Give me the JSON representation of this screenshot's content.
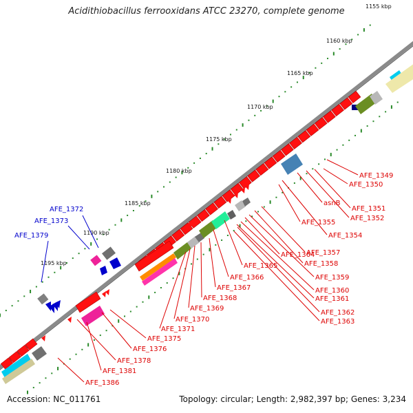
{
  "title": "Acidithiobacillus ferrooxidans ATCC 23270, complete genome",
  "footer": {
    "accession": "Accession: NC_011761",
    "summary": "Topology: circular; Length: 2,982,397 bp; Genes: 3,234"
  },
  "colors": {
    "backbone": "#8a8a8a",
    "forward_label": "#0000cc",
    "reverse_label": "#dd0000",
    "tick_major": "#2a8a2a",
    "tick_minor": "#2a8a2a"
  },
  "kbp_labels": [
    "1155 kbp",
    "1160 kbp",
    "1165 kbp",
    "1170 kbp",
    "1175 kbp",
    "1180 kbp",
    "1185 kbp",
    "1190 kbp",
    "1195 kbp"
  ],
  "labels_forward": [
    "AFE_1372",
    "AFE_1373",
    "AFE_1379"
  ],
  "labels_reverse": [
    "AFE_1349",
    "AFE_1350",
    "AFE_1351",
    "asnB",
    "AFE_1352",
    "AFE_1355",
    "AFE_1354",
    "AFE_1357",
    "AFE_1358",
    "AFE_1359",
    "AFE_1364",
    "AFE_1365",
    "AFE_1366",
    "AFE_1360",
    "AFE_1361",
    "AFE_1367",
    "AFE_1368",
    "AFE_1362",
    "AFE_1363",
    "AFE_1369",
    "AFE_1370",
    "AFE_1371",
    "AFE_1375",
    "AFE_1376",
    "AFE_1378",
    "AFE_1381",
    "AFE_1386"
  ]
}
